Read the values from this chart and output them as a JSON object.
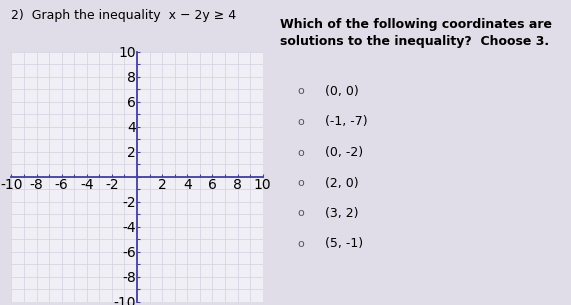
{
  "title": "2)  Graph the inequality  x − 2y ≥ 4",
  "question_text": "Which of the following coordinates are\nsolutions to the inequality?  Choose 3.",
  "choices": [
    "(0, 0)",
    "(−1, −7)",
    "(0, −2)",
    "(2, 0)",
    "(3, 2)",
    "(5, −1)"
  ],
  "choice_display": [
    "(0, 0)",
    "(-1, -7)",
    "(0, -2)",
    "(2, 0)",
    "(3, 2)",
    "(5, -1)"
  ],
  "xlim": [
    -10,
    10
  ],
  "ylim": [
    -10,
    10
  ],
  "xticks": [
    -10,
    -8,
    -6,
    -4,
    -2,
    2,
    4,
    6,
    8,
    10
  ],
  "yticks": [
    -10,
    -8,
    -6,
    -4,
    -2,
    2,
    4,
    6,
    8,
    10
  ],
  "grid_minor_color": "#d4d0e0",
  "grid_major_color": "#d4d0e0",
  "axis_color": "#4040a0",
  "bg_color": "#f0eff5",
  "overall_bg": "#e0dde8",
  "tick_fontsize": 6,
  "title_fontsize": 9,
  "question_fontsize": 9,
  "choice_fontsize": 9
}
